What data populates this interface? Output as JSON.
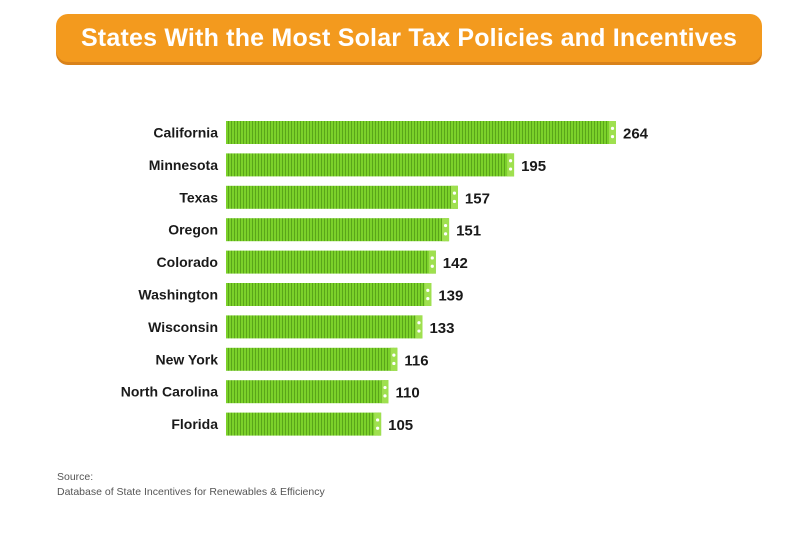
{
  "colors": {
    "title_bg": "#f39a1e",
    "bar_fill": "#7bd12a",
    "bar_stripe": "#5aa51a",
    "bar_cap": "#9fe04f"
  },
  "chart_data": {
    "type": "bar",
    "orientation": "horizontal",
    "title": "States With the Most Solar Tax Policies and Incentives",
    "categories": [
      "California",
      "Minnesota",
      "Texas",
      "Oregon",
      "Colorado",
      "Washington",
      "Wisconsin",
      "New York",
      "North Carolina",
      "Florida"
    ],
    "values": [
      264,
      195,
      157,
      151,
      142,
      139,
      133,
      116,
      110,
      105
    ],
    "xlabel": "",
    "ylabel": "",
    "xlim": [
      0,
      264
    ],
    "grid": false,
    "legend": "none"
  },
  "source": {
    "label": "Source:",
    "text": "Database of State Incentives for Renewables & Efficiency"
  }
}
